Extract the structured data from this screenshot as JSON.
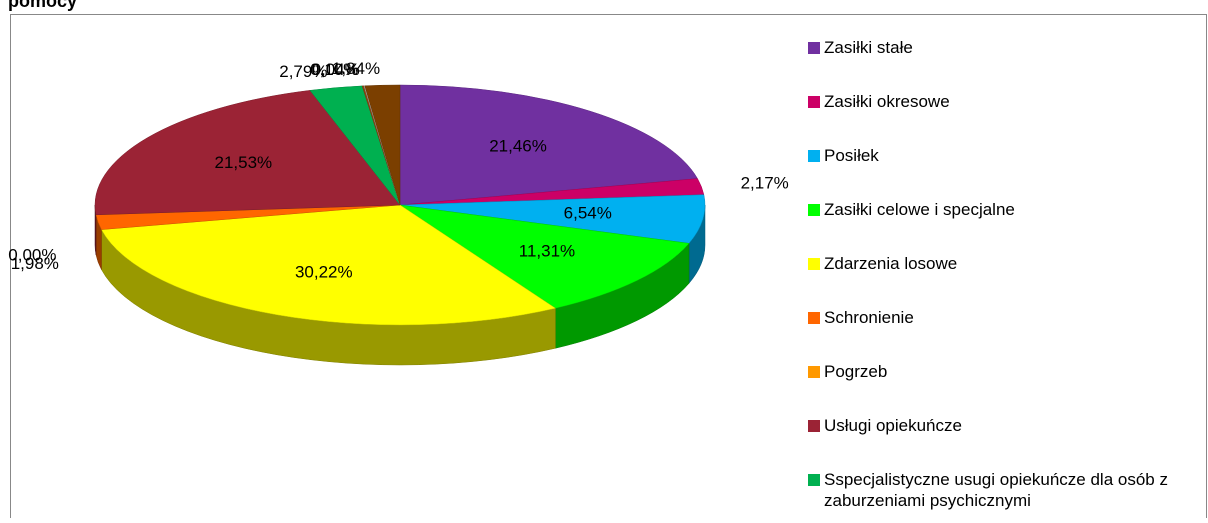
{
  "chart_data": {
    "type": "pie3d",
    "title": "pomocy",
    "categories": [
      "Zasiłki stałe",
      "Zasiłki okresowe",
      "Posiłek",
      "Zasiłki celowe i specjalne",
      "Zdarzenia losowe",
      "Schronienie",
      "Pogrzeb",
      "Usługi opiekuńcze",
      "Sspecjalistyczne usugi opiekuńcze dla osób z zaburzeniami psychicznymi",
      null,
      null,
      null
    ],
    "values": [
      21.46,
      2.17,
      6.54,
      11.31,
      30.22,
      1.98,
      0.0,
      21.53,
      2.79,
      0.1,
      0.04,
      1.84
    ],
    "value_labels": [
      "21,46%",
      "2,17%",
      "6,54%",
      "11,31%",
      "30,22%",
      "1,98%",
      "0,00%",
      "21,53%",
      "2,79%",
      "0,10%",
      "0,04%",
      "1,84%"
    ],
    "colors": [
      "#7030a0",
      "#cc0066",
      "#00b0f0",
      "#00ff00",
      "#ffff00",
      "#ff6600",
      "#ff9900",
      "#9b2335",
      "#00b050",
      "#8b4513",
      "#c0c0c0",
      "#7b3f00"
    ],
    "legend": "right"
  }
}
